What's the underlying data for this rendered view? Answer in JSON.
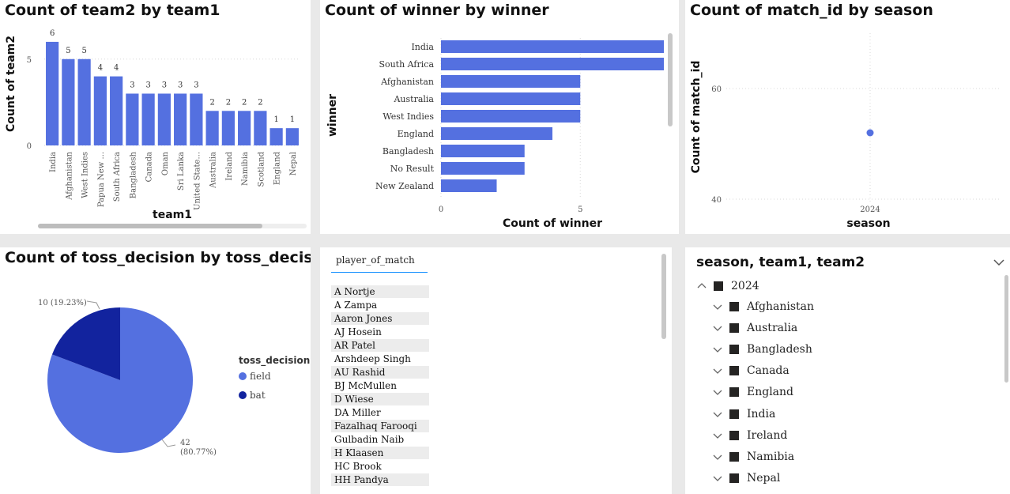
{
  "colors": {
    "series": "#5470e0",
    "dark": "#12239e",
    "grid": "#d8d8d8",
    "accent": "#118dff"
  },
  "chart_data": [
    {
      "type": "bar",
      "title": "Count of team2 by team1",
      "xlabel": "team1",
      "ylabel": "Count of team2",
      "categories": [
        "India",
        "Afghanistan",
        "West Indies",
        "Papua New ...",
        "South Africa",
        "Bangladesh",
        "Canada",
        "Oman",
        "Sri Lanka",
        "United State...",
        "Australia",
        "Ireland",
        "Namibia",
        "Scotland",
        "England",
        "Nepal"
      ],
      "values": [
        6,
        5,
        5,
        4,
        4,
        3,
        3,
        3,
        3,
        3,
        2,
        2,
        2,
        2,
        1,
        1
      ],
      "y_ticks": [
        "0",
        "5"
      ],
      "ylim": [
        0,
        6.5
      ]
    },
    {
      "type": "bar",
      "orientation": "horizontal",
      "title": "Count of winner by winner",
      "xlabel": "Count of winner",
      "ylabel": "winner",
      "categories": [
        "India",
        "South Africa",
        "Afghanistan",
        "Australia",
        "West Indies",
        "England",
        "Bangladesh",
        "No Result",
        "New Zealand"
      ],
      "values": [
        8,
        8,
        5,
        5,
        5,
        4,
        3,
        3,
        2
      ],
      "x_ticks": [
        "0",
        "5"
      ],
      "xlim": [
        0,
        8
      ]
    },
    {
      "type": "scatter",
      "title": "Count of match_id by season",
      "xlabel": "season",
      "ylabel": "Count of match_id",
      "points": [
        {
          "x": "2024",
          "y": 52
        }
      ],
      "y_ticks": [
        "40",
        "60"
      ],
      "ylim": [
        40,
        60
      ]
    },
    {
      "type": "pie",
      "title": "Count of toss_decision by toss_decision",
      "legend_title": "toss_decision",
      "slices": [
        {
          "name": "field",
          "value": 42,
          "label": "42",
          "pct": "(80.77%)"
        },
        {
          "name": "bat",
          "value": 10,
          "label": "10 (19.23%)"
        }
      ]
    }
  ],
  "slicer": {
    "header": "player_of_match",
    "items": [
      "A Nortje",
      "A Zampa",
      "Aaron Jones",
      "AJ Hosein",
      "AR Patel",
      "Arshdeep Singh",
      "AU Rashid",
      "BJ McMullen",
      "D Wiese",
      "DA Miller",
      "Fazalhaq Farooqi",
      "Gulbadin Naib",
      "H Klaasen",
      "HC Brook",
      "HH Pandya"
    ]
  },
  "tree": {
    "title": "season, team1, team2",
    "root": "2024",
    "children": [
      "Afghanistan",
      "Australia",
      "Bangladesh",
      "Canada",
      "England",
      "India",
      "Ireland",
      "Namibia",
      "Nepal"
    ]
  }
}
